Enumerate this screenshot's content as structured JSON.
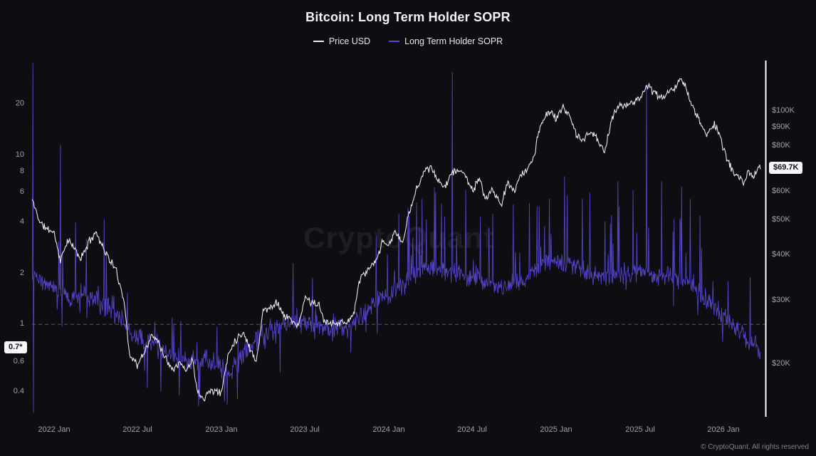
{
  "chart_data": {
    "type": "line",
    "title": "Bitcoin: Long Term Holder SOPR",
    "watermark": "CryptoQuant",
    "footer": "© CryptoQuant. All rights reserved",
    "legend": [
      {
        "label": "Price USD",
        "color": "#ececf2"
      },
      {
        "label": "Long Term Holder SOPR",
        "color": "#5847d6"
      }
    ],
    "x_axis": {
      "min": 2021.87,
      "max": 2026.25,
      "ticks": [
        {
          "v": 2022.0,
          "label": "2022 Jan"
        },
        {
          "v": 2022.5,
          "label": "2022 Jul"
        },
        {
          "v": 2023.0,
          "label": "2023 Jan"
        },
        {
          "v": 2023.5,
          "label": "2023 Jul"
        },
        {
          "v": 2024.0,
          "label": "2024 Jan"
        },
        {
          "v": 2024.5,
          "label": "2024 Jul"
        },
        {
          "v": 2025.0,
          "label": "2025 Jan"
        },
        {
          "v": 2025.5,
          "label": "2025 Jul"
        },
        {
          "v": 2026.0,
          "label": "2026 Jan"
        }
      ]
    },
    "sopr_axis": {
      "scale": "log",
      "min": 0.284,
      "max": 36.2,
      "reference_line": 1,
      "ticks": [
        {
          "v": 20,
          "label": "20"
        },
        {
          "v": 10,
          "label": "10"
        },
        {
          "v": 8,
          "label": "8"
        },
        {
          "v": 6,
          "label": "6"
        },
        {
          "v": 4,
          "label": "4"
        },
        {
          "v": 2,
          "label": "2"
        },
        {
          "v": 1,
          "label": "1"
        },
        {
          "v": 0.6,
          "label": "0.6"
        },
        {
          "v": 0.4,
          "label": "0.4"
        }
      ]
    },
    "price_axis": {
      "scale": "log",
      "min": 14.3,
      "max": 138,
      "unit": "K USD",
      "ticks": [
        {
          "v": 100,
          "label": "$100K"
        },
        {
          "v": 90,
          "label": "$90K"
        },
        {
          "v": 80,
          "label": "$80K"
        },
        {
          "v": 60,
          "label": "$60K"
        },
        {
          "v": 50,
          "label": "$50K"
        },
        {
          "v": 40,
          "label": "$40K"
        },
        {
          "v": 30,
          "label": "$30K"
        },
        {
          "v": 20,
          "label": "$20K"
        }
      ]
    },
    "badges": {
      "sopr": {
        "label": "0.7*",
        "value": 0.73
      },
      "price": {
        "label": "$69.7K",
        "value": 69.7
      }
    },
    "series": {
      "price_usd_k": {
        "name": "Price USD",
        "color": "#ececf2",
        "anchors": [
          [
            2021.87,
            57
          ],
          [
            2021.92,
            49
          ],
          [
            2021.96,
            47.2
          ],
          [
            2022.0,
            46.5
          ],
          [
            2022.04,
            38.5
          ],
          [
            2022.08,
            44
          ],
          [
            2022.12,
            42
          ],
          [
            2022.16,
            39
          ],
          [
            2022.21,
            43.5
          ],
          [
            2022.25,
            46.5
          ],
          [
            2022.29,
            42.5
          ],
          [
            2022.33,
            39
          ],
          [
            2022.37,
            36.5
          ],
          [
            2022.42,
            30
          ],
          [
            2022.45,
            21.5
          ],
          [
            2022.5,
            19.8
          ],
          [
            2022.54,
            21.5
          ],
          [
            2022.58,
            23.8
          ],
          [
            2022.62,
            23.5
          ],
          [
            2022.66,
            21
          ],
          [
            2022.71,
            19.5
          ],
          [
            2022.75,
            20.2
          ],
          [
            2022.79,
            19.2
          ],
          [
            2022.83,
            20.6
          ],
          [
            2022.86,
            16.6
          ],
          [
            2022.9,
            16.2
          ],
          [
            2022.94,
            17
          ],
          [
            2023.0,
            16.6
          ],
          [
            2023.04,
            21.2
          ],
          [
            2023.08,
            23.2
          ],
          [
            2023.13,
            24.5
          ],
          [
            2023.17,
            22.2
          ],
          [
            2023.21,
            20.4
          ],
          [
            2023.25,
            28.2
          ],
          [
            2023.29,
            28.5
          ],
          [
            2023.33,
            29.8
          ],
          [
            2023.38,
            27
          ],
          [
            2023.42,
            26.6
          ],
          [
            2023.46,
            25.2
          ],
          [
            2023.5,
            30.6
          ],
          [
            2023.54,
            29.6
          ],
          [
            2023.58,
            29.2
          ],
          [
            2023.62,
            26
          ],
          [
            2023.67,
            26.2
          ],
          [
            2023.71,
            25.9
          ],
          [
            2023.75,
            26.2
          ],
          [
            2023.79,
            27.4
          ],
          [
            2023.83,
            34.6
          ],
          [
            2023.88,
            36.6
          ],
          [
            2023.92,
            37.9
          ],
          [
            2023.96,
            43.2
          ],
          [
            2024.0,
            42.6
          ],
          [
            2024.04,
            46.6
          ],
          [
            2024.08,
            43.1
          ],
          [
            2024.12,
            51.6
          ],
          [
            2024.17,
            62
          ],
          [
            2024.21,
            68
          ],
          [
            2024.25,
            70.2
          ],
          [
            2024.29,
            64.2
          ],
          [
            2024.33,
            62
          ],
          [
            2024.38,
            67.6
          ],
          [
            2024.42,
            69.2
          ],
          [
            2024.46,
            66
          ],
          [
            2024.5,
            60.6
          ],
          [
            2024.54,
            64.6
          ],
          [
            2024.58,
            57.2
          ],
          [
            2024.62,
            61
          ],
          [
            2024.67,
            54.6
          ],
          [
            2024.71,
            63.2
          ],
          [
            2024.75,
            60.6
          ],
          [
            2024.79,
            66.6
          ],
          [
            2024.83,
            69.2
          ],
          [
            2024.87,
            75.5
          ],
          [
            2024.9,
            90
          ],
          [
            2024.94,
            97
          ],
          [
            2024.97,
            101
          ],
          [
            2025.0,
            94.2
          ],
          [
            2025.04,
            103
          ],
          [
            2025.08,
            97.5
          ],
          [
            2025.12,
            85.2
          ],
          [
            2025.17,
            83.6
          ],
          [
            2025.21,
            88
          ],
          [
            2025.25,
            82.6
          ],
          [
            2025.29,
            77.2
          ],
          [
            2025.33,
            94.5
          ],
          [
            2025.37,
            103
          ],
          [
            2025.42,
            104
          ],
          [
            2025.46,
            106.5
          ],
          [
            2025.5,
            108.5
          ],
          [
            2025.54,
            118
          ],
          [
            2025.58,
            113
          ],
          [
            2025.62,
            109
          ],
          [
            2025.67,
            112.5
          ],
          [
            2025.71,
            115.5
          ],
          [
            2025.75,
            124.5
          ],
          [
            2025.79,
            110
          ],
          [
            2025.83,
            99
          ],
          [
            2025.87,
            91
          ],
          [
            2025.9,
            86.5
          ],
          [
            2025.94,
            92
          ],
          [
            2025.97,
            88
          ],
          [
            2026.0,
            78.5
          ],
          [
            2026.04,
            70.5
          ],
          [
            2026.08,
            66
          ],
          [
            2026.12,
            63.5
          ],
          [
            2026.15,
            68
          ],
          [
            2026.18,
            65.5
          ],
          [
            2026.2,
            68.5
          ],
          [
            2026.22,
            69.7
          ]
        ]
      },
      "lth_sopr": {
        "name": "Long Term Holder SOPR",
        "color": "#5847d6",
        "anchors": [
          [
            2021.87,
            1.9,
            0.35,
            0.2
          ],
          [
            2022.0,
            1.6,
            0.32,
            0.2
          ],
          [
            2022.1,
            1.45,
            0.3,
            0.2
          ],
          [
            2022.2,
            1.5,
            0.28,
            0.22
          ],
          [
            2022.3,
            1.3,
            0.3,
            0.25
          ],
          [
            2022.4,
            1.05,
            0.22,
            0.3
          ],
          [
            2022.5,
            0.82,
            0.2,
            0.28
          ],
          [
            2022.6,
            0.76,
            0.22,
            0.26
          ],
          [
            2022.7,
            0.66,
            0.22,
            0.22
          ],
          [
            2022.8,
            0.6,
            0.2,
            0.22
          ],
          [
            2022.9,
            0.63,
            0.22,
            0.22
          ],
          [
            2023.0,
            0.55,
            0.2,
            0.22
          ],
          [
            2023.05,
            0.5,
            0.2,
            0.18
          ],
          [
            2023.1,
            0.62,
            0.22,
            0.18
          ],
          [
            2023.2,
            0.78,
            0.22,
            0.18
          ],
          [
            2023.3,
            0.95,
            0.2,
            0.18
          ],
          [
            2023.4,
            1.0,
            0.2,
            0.2
          ],
          [
            2023.5,
            1.05,
            0.2,
            0.2
          ],
          [
            2023.6,
            1.0,
            0.18,
            0.2
          ],
          [
            2023.7,
            0.95,
            0.18,
            0.18
          ],
          [
            2023.8,
            1.02,
            0.2,
            0.15
          ],
          [
            2023.9,
            1.3,
            0.28,
            0.15
          ],
          [
            2024.0,
            1.5,
            0.3,
            0.15
          ],
          [
            2024.1,
            1.75,
            0.32,
            0.15
          ],
          [
            2024.2,
            2.2,
            0.35,
            0.15
          ],
          [
            2024.3,
            2.1,
            0.4,
            0.15
          ],
          [
            2024.4,
            2.0,
            0.4,
            0.15
          ],
          [
            2024.5,
            1.9,
            0.38,
            0.15
          ],
          [
            2024.6,
            1.75,
            0.36,
            0.15
          ],
          [
            2024.7,
            1.65,
            0.35,
            0.15
          ],
          [
            2024.8,
            1.8,
            0.38,
            0.15
          ],
          [
            2024.9,
            2.2,
            0.42,
            0.15
          ],
          [
            2025.0,
            2.4,
            0.45,
            0.15
          ],
          [
            2025.1,
            2.2,
            0.42,
            0.15
          ],
          [
            2025.2,
            2.0,
            0.4,
            0.15
          ],
          [
            2025.3,
            1.85,
            0.4,
            0.15
          ],
          [
            2025.4,
            2.0,
            0.42,
            0.15
          ],
          [
            2025.5,
            2.05,
            0.42,
            0.15
          ],
          [
            2025.6,
            1.95,
            0.4,
            0.15
          ],
          [
            2025.7,
            1.9,
            0.4,
            0.15
          ],
          [
            2025.8,
            1.75,
            0.38,
            0.15
          ],
          [
            2025.9,
            1.4,
            0.3,
            0.15
          ],
          [
            2026.0,
            1.1,
            0.25,
            0.12
          ],
          [
            2026.1,
            0.88,
            0.22,
            0.12
          ],
          [
            2026.22,
            0.7,
            0.3,
            0.1
          ]
        ],
        "spikes": [
          [
            2021.874,
            35
          ],
          [
            2021.878,
            0.3
          ],
          [
            2022.04,
            11.5
          ],
          [
            2022.13,
            4.0
          ],
          [
            2022.3,
            4.2
          ],
          [
            2022.56,
            0.42
          ],
          [
            2022.64,
            0.4
          ],
          [
            2022.75,
            0.38
          ],
          [
            2022.87,
            0.36
          ],
          [
            2023.02,
            0.35
          ],
          [
            2023.35,
            0.52
          ],
          [
            2023.43,
            2.3
          ],
          [
            2024.06,
            4.5
          ],
          [
            2024.2,
            5.5
          ],
          [
            2024.28,
            6.0
          ],
          [
            2024.38,
            31
          ],
          [
            2024.46,
            6.2
          ],
          [
            2024.62,
            4.5
          ],
          [
            2024.84,
            5.2
          ],
          [
            2024.9,
            5.0
          ],
          [
            2025.05,
            7.5
          ],
          [
            2025.2,
            6.0
          ],
          [
            2025.37,
            7.0
          ],
          [
            2025.46,
            6.2
          ],
          [
            2025.54,
            26
          ],
          [
            2025.63,
            7.0
          ],
          [
            2025.75,
            6.5
          ],
          [
            2025.8,
            5.5
          ],
          [
            2025.86,
            4.4
          ],
          [
            2026.16,
            1.9
          ]
        ]
      }
    }
  }
}
